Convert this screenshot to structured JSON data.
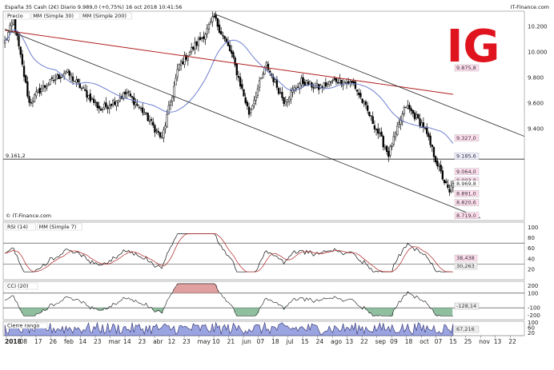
{
  "header": {
    "text": "España 35 Cash (2€)  Diario  9.989,0 (+0,75%)  16 oct 2018 10:41:56",
    "source": "IT-Finance.com"
  },
  "logo_text": "IG",
  "colors": {
    "candle": "#000000",
    "sma30": "#6f7fd0",
    "sma200": "#b02020",
    "area_fill": "#9aa4e0",
    "cci_pos": "#e0a0a0",
    "cci_neg": "#8fbf9f",
    "logo": "#e0141e"
  },
  "chart_data": [
    {
      "type": "candlestick",
      "legend": [
        "Precio",
        "MM (Simple 30)",
        "MM (Simple 200)"
      ],
      "x_labels": [
        "2018",
        "08",
        "17",
        "26",
        "feb",
        "14",
        "23",
        "mar",
        "14",
        "23",
        "abr",
        "12",
        "23",
        "may",
        "10",
        "21",
        "jun",
        "07",
        "18",
        "jul",
        "15",
        "24",
        "ago",
        "13",
        "22",
        "sep",
        "09",
        "18",
        "oct",
        "07",
        "15",
        "25",
        "nov",
        "13",
        "22"
      ],
      "y_ticks": [
        "10.200",
        "10.000",
        "9.800",
        "9.600",
        "9.400"
      ],
      "ylim": [
        8680,
        10320
      ],
      "horizontal_line": {
        "value": 9161.2,
        "label": "9.161,2"
      },
      "price_labels": [
        "9.875,8",
        "9.327,0",
        "9.185,6",
        "9.064,0",
        "8.993,8",
        "8.969,8",
        "8.891,0",
        "8.820,6",
        "8.719,0"
      ],
      "key_points": [
        {
          "i": 0,
          "close": 10080
        },
        {
          "i": 5,
          "close": 10250
        },
        {
          "i": 14,
          "close": 9600
        },
        {
          "i": 20,
          "close": 9700
        },
        {
          "i": 35,
          "close": 9850
        },
        {
          "i": 55,
          "close": 9550
        },
        {
          "i": 70,
          "close": 9680
        },
        {
          "i": 80,
          "close": 9520
        },
        {
          "i": 90,
          "close": 9320
        },
        {
          "i": 100,
          "close": 9900
        },
        {
          "i": 115,
          "close": 10150
        },
        {
          "i": 120,
          "close": 10270
        },
        {
          "i": 130,
          "close": 9980
        },
        {
          "i": 140,
          "close": 9520
        },
        {
          "i": 150,
          "close": 9900
        },
        {
          "i": 160,
          "close": 9620
        },
        {
          "i": 170,
          "close": 9770
        },
        {
          "i": 180,
          "close": 9720
        },
        {
          "i": 190,
          "close": 9780
        },
        {
          "i": 200,
          "close": 9750
        },
        {
          "i": 210,
          "close": 9480
        },
        {
          "i": 220,
          "close": 9200
        },
        {
          "i": 230,
          "close": 9580
        },
        {
          "i": 240,
          "close": 9420
        },
        {
          "i": 250,
          "close": 9050
        },
        {
          "i": 255,
          "close": 8890
        },
        {
          "i": 257,
          "close": 8990
        }
      ]
    },
    {
      "type": "line",
      "legend": [
        "RSI (14)",
        "MM (Simple 7)"
      ],
      "y_ticks": [
        "100",
        "80",
        "60",
        "40",
        "20"
      ],
      "ylim": [
        0,
        110
      ],
      "level_lines": [
        70,
        30
      ],
      "last_values": [
        "38,438",
        "30,263"
      ]
    },
    {
      "type": "area",
      "legend": [
        "CCI (20)"
      ],
      "y_ticks": [
        "200",
        "100",
        "-100",
        "-200"
      ],
      "ylim": [
        -260,
        260
      ],
      "level_lines": [
        100,
        -100
      ],
      "last_values": [
        "-128,14"
      ]
    },
    {
      "type": "area",
      "legend": [
        "Cierre rango"
      ],
      "y_ticks": [
        "100",
        "60",
        "20"
      ],
      "ylim": [
        0,
        110
      ],
      "last_values": [
        "67,216"
      ]
    }
  ]
}
